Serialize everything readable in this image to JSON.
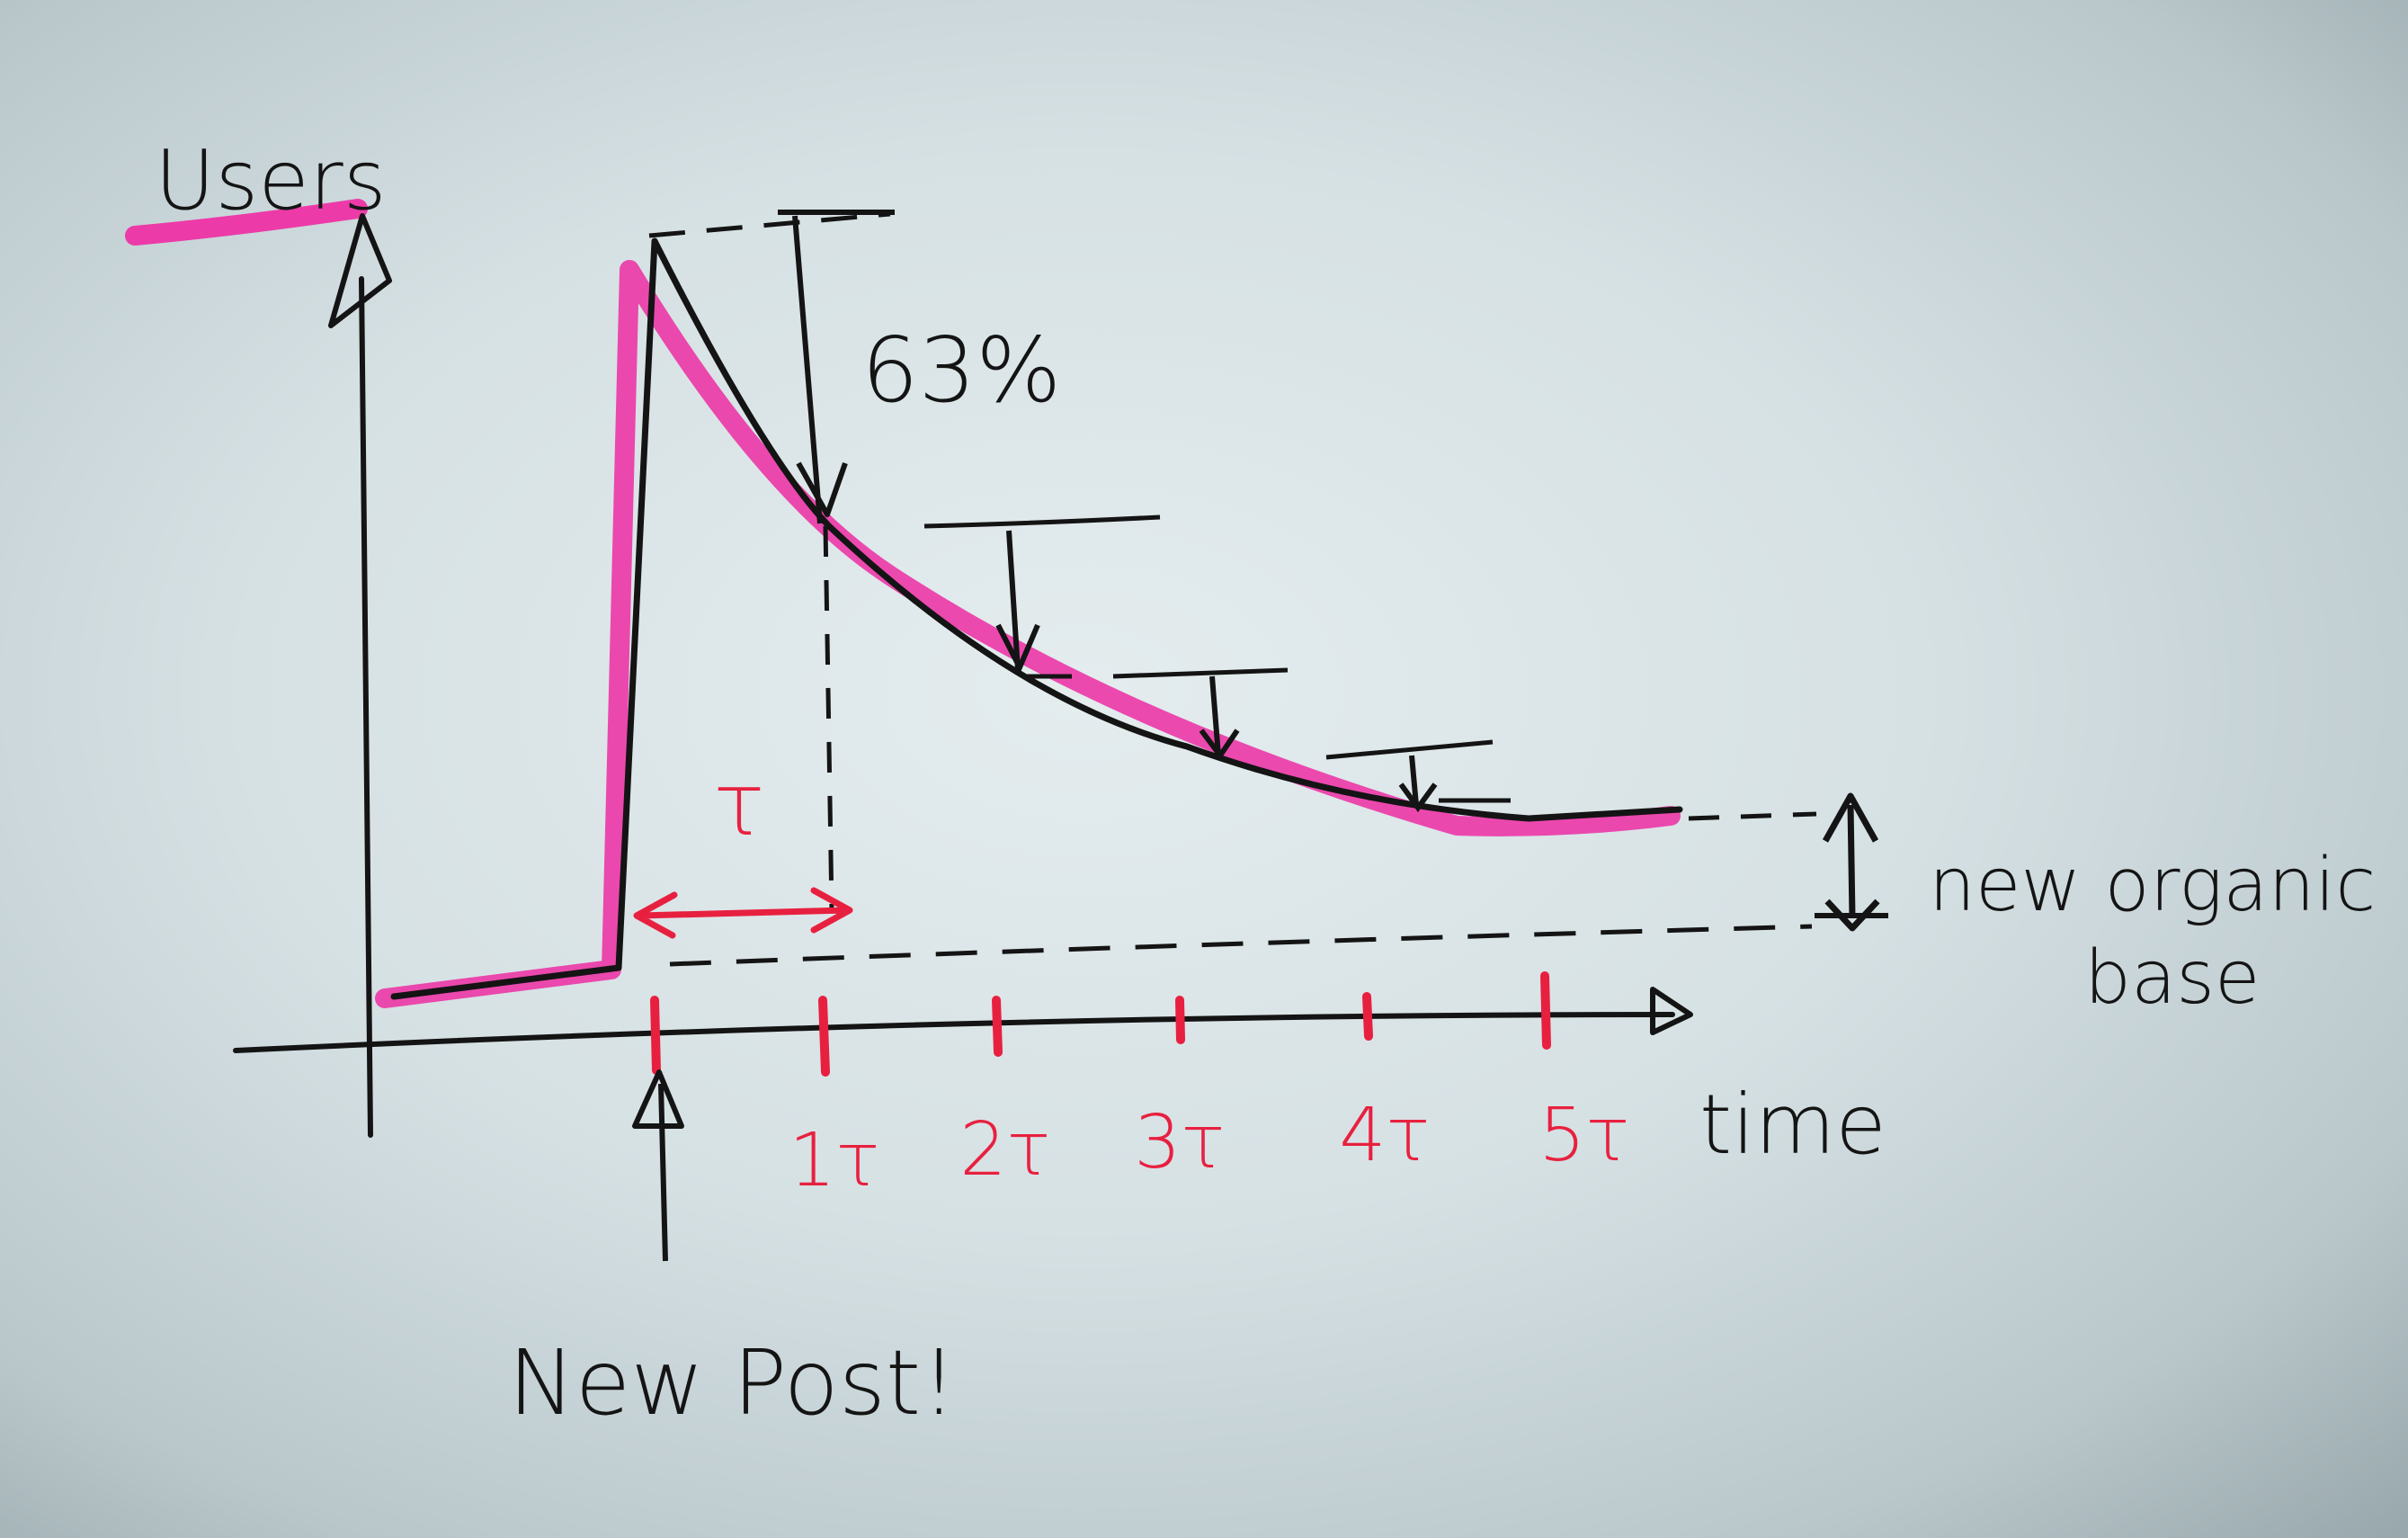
{
  "diagram": {
    "y_axis_label": "Users",
    "x_axis_label": "time",
    "percent_label": "63%",
    "tau_label": "τ",
    "tick_labels": [
      "1τ",
      "2τ",
      "3τ",
      "4τ",
      "5τ"
    ],
    "event_label": "New Post!",
    "baseline_label_line1": "new organic",
    "baseline_label_line2": "base"
  },
  "colors": {
    "ink": "#141414",
    "highlight": "#ec3ba8",
    "red": "#e8203f",
    "paper": "#dfe8ea"
  }
}
